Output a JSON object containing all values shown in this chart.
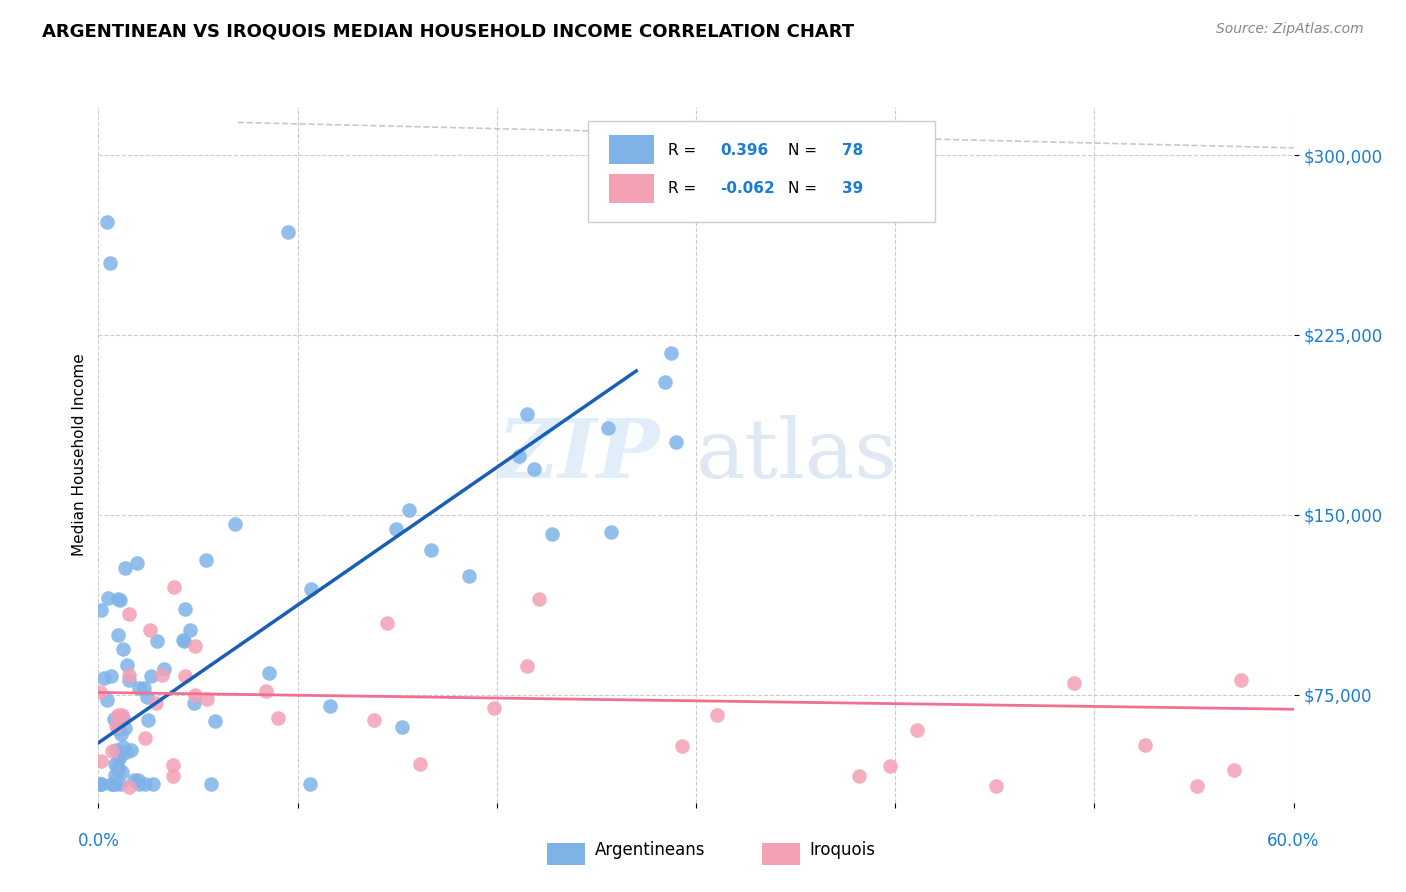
{
  "title": "ARGENTINEAN VS IROQUOIS MEDIAN HOUSEHOLD INCOME CORRELATION CHART",
  "source": "Source: ZipAtlas.com",
  "ylabel": "Median Household Income",
  "yticks": [
    75000,
    150000,
    225000,
    300000
  ],
  "ytick_labels": [
    "$75,000",
    "$150,000",
    "$225,000",
    "$300,000"
  ],
  "xlim": [
    0.0,
    0.6
  ],
  "ylim": [
    30000,
    320000
  ],
  "watermark_zip": "ZIP",
  "watermark_atlas": "atlas",
  "legend_r_arg": "0.396",
  "legend_n_arg": "78",
  "legend_r_iro": "-0.062",
  "legend_n_iro": "39",
  "color_arg": "#7fb3e8",
  "color_iro": "#f4a0b5",
  "color_arg_line": "#1a5eb8",
  "color_iro_line": "#f07090",
  "color_tick_label": "#1a7cd4",
  "arg_trend_x0": 0.0,
  "arg_trend_y0": 55000,
  "arg_trend_x1": 0.27,
  "arg_trend_y1": 210000,
  "iro_trend_x0": 0.0,
  "iro_trend_y0": 76000,
  "iro_trend_x1": 0.6,
  "iro_trend_y1": 69000,
  "ref_line_x0": 0.07,
  "ref_line_y0": 305000,
  "ref_line_x1": 0.6,
  "ref_line_y1": 305000
}
